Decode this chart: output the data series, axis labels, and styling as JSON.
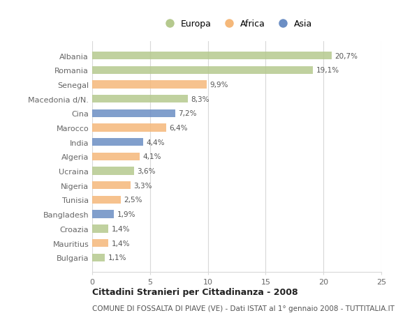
{
  "categories": [
    "Albania",
    "Romania",
    "Senegal",
    "Macedonia d/N.",
    "Cina",
    "Marocco",
    "India",
    "Algeria",
    "Ucraina",
    "Nigeria",
    "Tunisia",
    "Bangladesh",
    "Croazia",
    "Mauritius",
    "Bulgaria"
  ],
  "values": [
    20.7,
    19.1,
    9.9,
    8.3,
    7.2,
    6.4,
    4.4,
    4.1,
    3.6,
    3.3,
    2.5,
    1.9,
    1.4,
    1.4,
    1.1
  ],
  "labels": [
    "20,7%",
    "19,1%",
    "9,9%",
    "8,3%",
    "7,2%",
    "6,4%",
    "4,4%",
    "4,1%",
    "3,6%",
    "3,3%",
    "2,5%",
    "1,9%",
    "1,4%",
    "1,4%",
    "1,1%"
  ],
  "continent": [
    "Europa",
    "Europa",
    "Africa",
    "Europa",
    "Asia",
    "Africa",
    "Asia",
    "Africa",
    "Europa",
    "Africa",
    "Africa",
    "Asia",
    "Europa",
    "Africa",
    "Europa"
  ],
  "colors": {
    "Europa": "#b5c98e",
    "Africa": "#f5b87a",
    "Asia": "#6b8ec4"
  },
  "xlim": [
    0,
    25
  ],
  "xticks": [
    0,
    5,
    10,
    15,
    20,
    25
  ],
  "title": "Cittadini Stranieri per Cittadinanza - 2008",
  "subtitle": "COMUNE DI FOSSALTA DI PIAVE (VE) - Dati ISTAT al 1° gennaio 2008 - TUTTITALIA.IT",
  "background_color": "#ffffff",
  "grid_color": "#d8d8d8"
}
